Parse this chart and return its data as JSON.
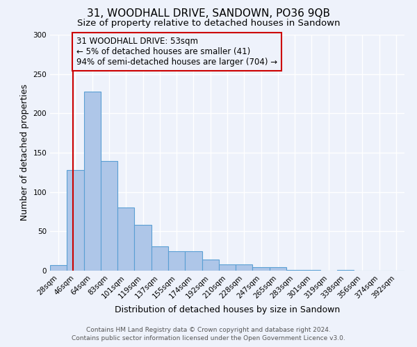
{
  "title": "31, WOODHALL DRIVE, SANDOWN, PO36 9QB",
  "subtitle": "Size of property relative to detached houses in Sandown",
  "xlabel": "Distribution of detached houses by size in Sandown",
  "ylabel": "Number of detached properties",
  "bin_labels": [
    "28sqm",
    "46sqm",
    "64sqm",
    "83sqm",
    "101sqm",
    "119sqm",
    "137sqm",
    "155sqm",
    "174sqm",
    "192sqm",
    "210sqm",
    "228sqm",
    "247sqm",
    "265sqm",
    "283sqm",
    "301sqm",
    "319sqm",
    "338sqm",
    "356sqm",
    "374sqm",
    "392sqm"
  ],
  "bin_values": [
    7,
    128,
    228,
    139,
    80,
    58,
    31,
    25,
    25,
    14,
    8,
    8,
    4,
    4,
    1,
    1,
    0,
    1,
    0,
    0,
    0
  ],
  "bar_color": "#aec6e8",
  "bar_edge_color": "#5a9fd4",
  "vline_color": "#cc0000",
  "vline_x": 0.87,
  "annotation_box_text": "31 WOODHALL DRIVE: 53sqm\n← 5% of detached houses are smaller (41)\n94% of semi-detached houses are larger (704) →",
  "annotation_box_color": "#cc0000",
  "ylim": [
    0,
    300
  ],
  "yticks": [
    0,
    50,
    100,
    150,
    200,
    250,
    300
  ],
  "footer_line1": "Contains HM Land Registry data © Crown copyright and database right 2024.",
  "footer_line2": "Contains public sector information licensed under the Open Government Licence v3.0.",
  "background_color": "#eef2fb",
  "grid_color": "#ffffff",
  "title_fontsize": 11,
  "subtitle_fontsize": 9.5,
  "axis_label_fontsize": 9,
  "tick_fontsize": 7.5,
  "annotation_fontsize": 8.5,
  "footer_fontsize": 6.5
}
